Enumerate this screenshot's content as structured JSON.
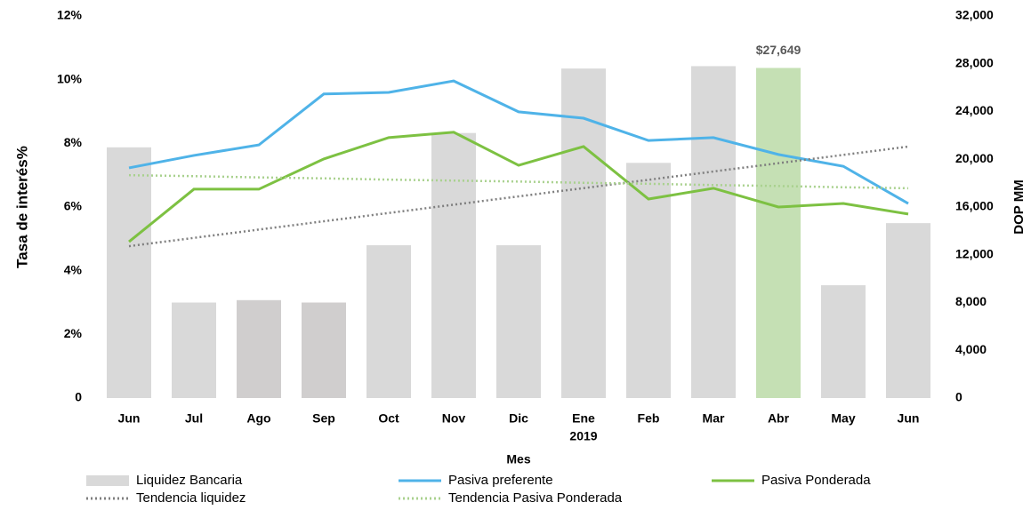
{
  "chart_data": {
    "type": "combo",
    "categories": [
      "Jun",
      "Jul",
      "Ago",
      "Sep",
      "Oct",
      "Nov",
      "Dic",
      "Ene",
      "Feb",
      "Mar",
      "Abr",
      "May",
      "Jun"
    ],
    "category_group_label": "2019",
    "x_label": "Mes",
    "y_label": "Tasa de interés%",
    "y2_label": "DOP MM",
    "ylim": [
      0,
      12
    ],
    "yticks": [
      0,
      {
        "value": 2,
        "label": "2%"
      },
      {
        "value": 4,
        "label": "4%"
      },
      {
        "value": 6,
        "label": "6%"
      },
      {
        "value": 8,
        "label": "8%"
      },
      {
        "value": 10,
        "label": "10%"
      },
      {
        "value": 12,
        "label": "12%"
      }
    ],
    "y2lim": [
      0,
      32000
    ],
    "y2ticks": [
      0,
      {
        "value": 4000,
        "label": "4,000"
      },
      {
        "value": 8000,
        "label": "8,000"
      },
      {
        "value": 12000,
        "label": "12,000"
      },
      {
        "value": 16000,
        "label": "16,000"
      },
      {
        "value": 20000,
        "label": "20,000"
      },
      {
        "value": 24000,
        "label": "24,000"
      },
      {
        "value": 28000,
        "label": "28,000"
      },
      {
        "value": 32000,
        "label": "32,000"
      }
    ],
    "grid": false,
    "legend": "bottom",
    "series": [
      {
        "name": "Liquidez Bancaria",
        "type": "bar",
        "axis": "y2",
        "color": "#d9d9d9",
        "colors": [
          "#d9d9d9",
          "#d9d9d9",
          "#d0cece",
          "#d0cece",
          "#d9d9d9",
          "#d9d9d9",
          "#d9d9d9",
          "#d9d9d9",
          "#d9d9d9",
          "#d9d9d9",
          "#c5e0b4",
          "#d9d9d9",
          "#d9d9d9"
        ],
        "values": [
          21000,
          8000,
          8200,
          8000,
          12800,
          22200,
          12800,
          27600,
          19700,
          27800,
          27649,
          9450,
          14650
        ],
        "value_labels": [
          null,
          null,
          null,
          null,
          null,
          null,
          null,
          null,
          null,
          null,
          "$27,649",
          null,
          null
        ]
      },
      {
        "name": "Pasiva preferente",
        "type": "line",
        "axis": "y",
        "color": "#4fb3e8",
        "dash": "solid",
        "values": [
          7.23,
          7.62,
          7.95,
          9.55,
          9.6,
          9.96,
          8.99,
          8.79,
          8.09,
          8.18,
          7.65,
          7.28,
          6.11
        ]
      },
      {
        "name": "Pasiva Ponderada",
        "type": "line",
        "axis": "y",
        "color": "#7dc142",
        "dash": "solid",
        "values": [
          4.91,
          6.56,
          6.56,
          7.51,
          8.18,
          8.35,
          7.31,
          7.9,
          6.25,
          6.59,
          6.0,
          6.11,
          5.78
        ]
      },
      {
        "name": "Tendencia liquidez",
        "type": "line",
        "axis": "y2",
        "color": "#7f7f7f",
        "dash": "dotted",
        "values": [
          12720,
          13415,
          14110,
          14805,
          15500,
          16195,
          16890,
          17585,
          18280,
          18975,
          19670,
          20365,
          21060
        ]
      },
      {
        "name": "Tendencia Pasiva Ponderada",
        "type": "line",
        "axis": "y",
        "color": "#a9d18e",
        "dash": "dotted",
        "values": [
          7.0,
          6.97,
          6.93,
          6.9,
          6.86,
          6.83,
          6.8,
          6.76,
          6.73,
          6.69,
          6.66,
          6.62,
          6.59
        ]
      }
    ]
  }
}
